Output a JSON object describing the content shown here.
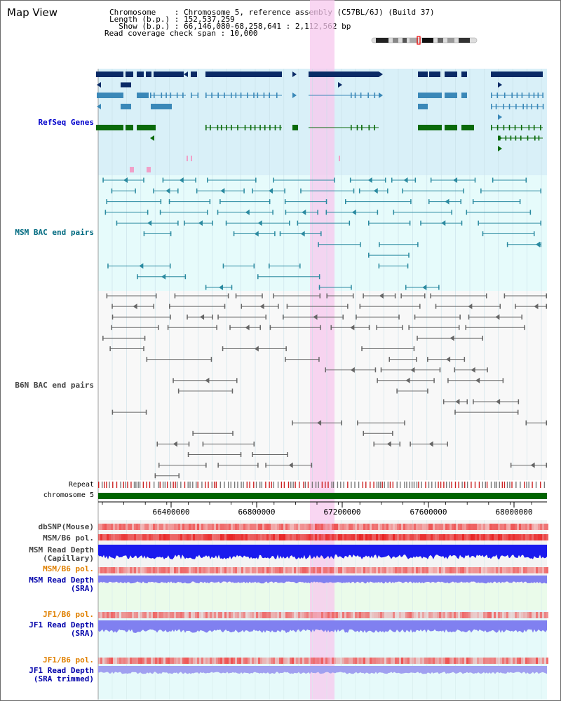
{
  "title": "Map View",
  "info": {
    "chromosome_line": "Chromosome    : Chromosome 5, reference assembly (C57BL/6J) (Build 37)",
    "length_line": "Length (b.p.) : 152,537,259",
    "show_line": "  Show (b.p.) : 66,146,080-68,258,641 : 2,112,562 bp",
    "span_line": "Read coverage check span : 10,000"
  },
  "tracks": {
    "refseq": {
      "label": "RefSeq Genes",
      "color": "#0000cc"
    },
    "msm_bac": {
      "label": "MSM BAC end pairs",
      "color": "#006a80"
    },
    "b6n_bac": {
      "label": "B6N BAC end pairs",
      "color": "#444444"
    },
    "repeat": {
      "label": "Repeat"
    },
    "chromosome": {
      "label": "chromosome 5"
    },
    "dbsnp": {
      "label": "dbSNP(Mouse)"
    },
    "msm_b6_pol_1": {
      "label": "MSM/B6 pol."
    },
    "msm_depth_cap": {
      "label": "MSM Read Depth\n(Capillary)"
    },
    "msm_b6_pol_2": {
      "label": "MSM/B6 pol.",
      "color": "#e08000"
    },
    "msm_depth_sra": {
      "label": "MSM Read Depth\n(SRA)",
      "color": "#0000aa"
    },
    "jf1_b6_pol_1": {
      "label": "JF1/B6 pol.",
      "color": "#e08000"
    },
    "jf1_depth_sra": {
      "label": "JF1 Read Depth\n(SRA)",
      "color": "#0000aa"
    },
    "jf1_b6_pol_2": {
      "label": "JF1/B6 pol.",
      "color": "#e08000"
    },
    "jf1_depth_trim": {
      "label": "JF1 Read Depth\n(SRA trimmed)",
      "color": "#0000aa"
    }
  },
  "axis": {
    "ticks": [
      "66400000",
      "66800000",
      "67200000",
      "67600000",
      "68000000"
    ]
  },
  "colors": {
    "refseq_dark": "#0a2a66",
    "refseq_mid": "#3a88b8",
    "refseq_green": "#0a6a0a",
    "msm_line": "#2a8aa0",
    "b6n_line": "#666666",
    "highlight": "#f7c8ee",
    "chrom_bar": "#006400",
    "repeat_red": "#cc2222",
    "repeat_gray": "#777777",
    "snp_red": "#ee4444",
    "depth_blue": "#1a1aee",
    "depth_light": "#8080f0"
  }
}
